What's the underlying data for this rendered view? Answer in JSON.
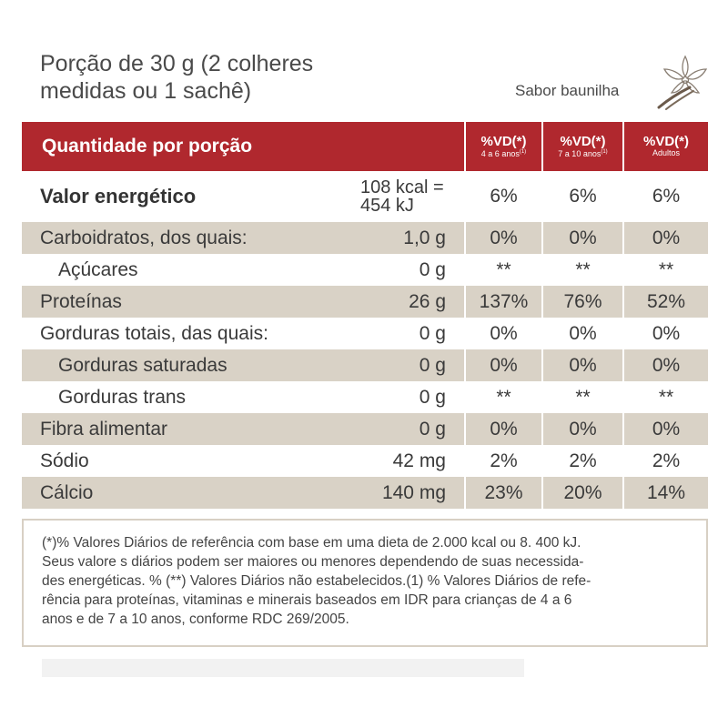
{
  "serving": {
    "line1": "Porção de 30 g (2 colheres",
    "line2": "medidas ou 1 sachê)"
  },
  "flavor": "Sabor baunilha",
  "header": {
    "title": "Quantidade por porção",
    "cols": [
      {
        "label": "%VD(*)",
        "sub": "4 a 6 anos",
        "sup": "(1)"
      },
      {
        "label": "%VD(*)",
        "sub": "7 a 10 anos",
        "sup": "(1)"
      },
      {
        "label": "%VD(*)",
        "sub": "Adultos",
        "sup": ""
      }
    ]
  },
  "energy": {
    "name": "Valor energético",
    "amount_line1": "108 kcal =",
    "amount_line2": "454 kJ",
    "vd": [
      "6%",
      "6%",
      "6%"
    ]
  },
  "rows": [
    {
      "name": "Carboidratos, dos quais:",
      "amount": "1,0 g",
      "vd": [
        "0%",
        "0%",
        "0%"
      ]
    },
    {
      "name": "Açúcares",
      "amount": "0 g",
      "vd": [
        "**",
        "**",
        "**"
      ]
    },
    {
      "name": "Proteínas",
      "amount": "26 g",
      "vd": [
        "137%",
        "76%",
        "52%"
      ]
    },
    {
      "name": "Gorduras totais, das quais:",
      "amount": "0 g",
      "vd": [
        "0%",
        "0%",
        "0%"
      ]
    },
    {
      "name": "Gorduras saturadas",
      "amount": "0 g",
      "vd": [
        "0%",
        "0%",
        "0%"
      ]
    },
    {
      "name": "Gorduras trans",
      "amount": "0 g",
      "vd": [
        "**",
        "**",
        "**"
      ]
    },
    {
      "name": "Fibra alimentar",
      "amount": "0 g",
      "vd": [
        "0%",
        "0%",
        "0%"
      ]
    },
    {
      "name": "Sódio",
      "amount": "42 mg",
      "vd": [
        "2%",
        "2%",
        "2%"
      ]
    },
    {
      "name": "Cálcio",
      "amount": "140 mg",
      "vd": [
        "23%",
        "20%",
        "14%"
      ]
    }
  ],
  "footnote": [
    "(*)% Valores Diários de referência com base em uma dieta de 2.000 kcal ou 8. 400 kJ.",
    "Seus valore s diários podem ser maiores ou menores dependendo de suas necessida-",
    "des energéticas. % (**) Valores Diários não estabelecidos.(1) % Valores Diários de refe-",
    "rência para proteínas, vitaminas e minerais baseados em IDR para crianças de 4 a 6",
    "anos e de 7 a 10 anos, conforme RDC 269/2005."
  ],
  "colors": {
    "header_red": "#b0282e",
    "row_shade": "#d9d2c6",
    "note_border": "#d8d0c4"
  },
  "icons": {
    "flavor": "vanilla-flower-icon"
  }
}
